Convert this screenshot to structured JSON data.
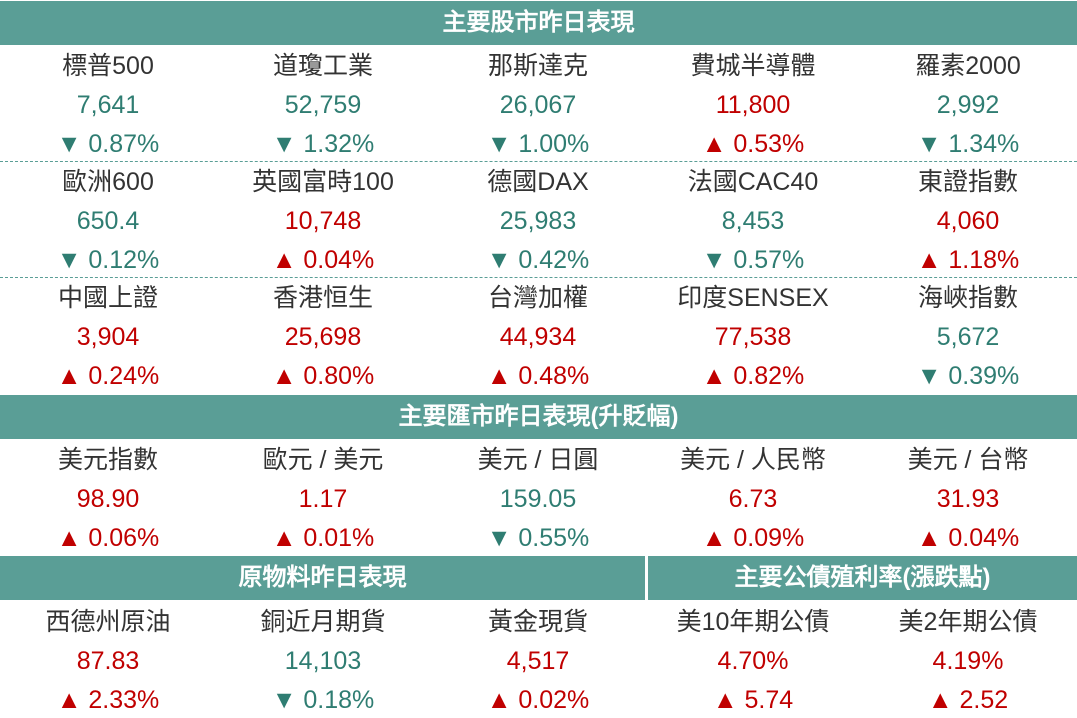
{
  "stocks": {
    "title": "主要股市昨日表現",
    "rows": [
      [
        {
          "name": "標普500",
          "value": "7,641",
          "change": "▼ 0.87%"
        },
        {
          "name": "道瓊工業",
          "value": "52,759",
          "change": "▼ 1.32%"
        },
        {
          "name": "那斯達克",
          "value": "26,067",
          "change": "▼ 1.00%"
        },
        {
          "name": "費城半導體",
          "value": "11,800",
          "change": "▲ 0.53%"
        },
        {
          "name": "羅素2000",
          "value": "2,992",
          "change": "▼ 1.34%"
        }
      ],
      [
        {
          "name": "歐洲600",
          "value": "650.4",
          "change": "▼ 0.12%"
        },
        {
          "name": "英國富時100",
          "value": "10,748",
          "change": "▲ 0.04%"
        },
        {
          "name": "德國DAX",
          "value": "25,983",
          "change": "▼ 0.42%"
        },
        {
          "name": "法國CAC40",
          "value": "8,453",
          "change": "▼ 0.57%"
        },
        {
          "name": "東證指數",
          "value": "4,060",
          "change": "▲ 1.18%"
        }
      ],
      [
        {
          "name": "中國上證",
          "value": "3,904",
          "change": "▲ 0.24%"
        },
        {
          "name": "香港恒生",
          "value": "25,698",
          "change": "▲ 0.80%"
        },
        {
          "name": "台灣加權",
          "value": "44,934",
          "change": "▲ 0.48%"
        },
        {
          "name": "印度SENSEX",
          "value": "77,538",
          "change": "▲ 0.82%"
        },
        {
          "name": "海峽指數",
          "value": "5,672",
          "change": "▼ 0.39%"
        }
      ]
    ]
  },
  "fx": {
    "title": "主要匯市昨日表現(升貶幅)",
    "items": [
      {
        "name": "美元指數",
        "value": "98.90",
        "change": "▲ 0.06%"
      },
      {
        "name": "歐元 / 美元",
        "value": "1.17",
        "change": "▲ 0.01%"
      },
      {
        "name": "美元 / 日圓",
        "value": "159.05",
        "change": "▼ 0.55%"
      },
      {
        "name": "美元 / 人民幣",
        "value": "6.73",
        "change": "▲ 0.09%"
      },
      {
        "name": "美元 / 台幣",
        "value": "31.93",
        "change": "▲ 0.04%"
      }
    ]
  },
  "commodities": {
    "title": "原物料昨日表現",
    "items": [
      {
        "name": "西德州原油",
        "value": "87.83",
        "change": "▲ 2.33%"
      },
      {
        "name": "銅近月期貨",
        "value": "14,103",
        "change": "▼ 0.18%"
      },
      {
        "name": "黃金現貨",
        "value": "4,517",
        "change": "▲ 0.02%"
      }
    ]
  },
  "bonds": {
    "title": "主要公債殖利率(漲跌點)",
    "items": [
      {
        "name": "美10年期公債",
        "value": "4.70%",
        "change": "▲ 5.74"
      },
      {
        "name": "美2年期公債",
        "value": "4.19%",
        "change": "▲ 2.52"
      }
    ]
  }
}
